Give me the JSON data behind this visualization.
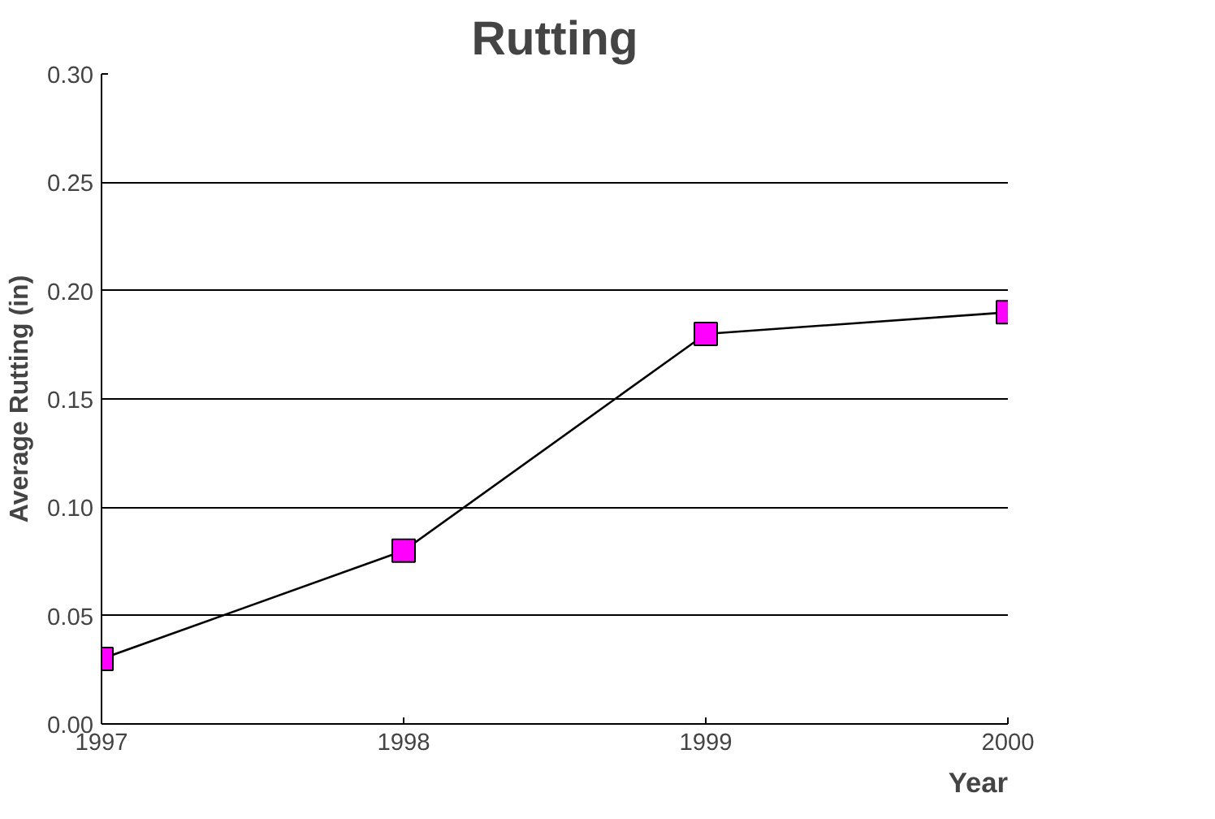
{
  "chart_data": {
    "type": "line",
    "title": "Rutting",
    "xlabel": "Year",
    "ylabel": "Average Rutting (in)",
    "x": [
      1997,
      1998,
      1999,
      2000
    ],
    "series": [
      {
        "color": "#ff00ff",
        "values": [
          0.03,
          0.08,
          0.18,
          0.19
        ]
      }
    ],
    "xlim": [
      1997,
      2000
    ],
    "xticks": [
      1997,
      1998,
      1999,
      2000
    ],
    "ylim": [
      0,
      0.3
    ],
    "yticks": [
      {
        "value": 0,
        "label": "0.00"
      },
      {
        "value": 0.05,
        "label": "0.05"
      },
      {
        "value": 0.1,
        "label": "0.10"
      },
      {
        "value": 0.15,
        "label": "0.15"
      },
      {
        "value": 0.2,
        "label": "0.20"
      },
      {
        "value": 0.25,
        "label": "0.25"
      },
      {
        "value": 0.3,
        "label": "0.30"
      }
    ],
    "grid": "y",
    "marker": "square",
    "line_style": "solid"
  }
}
